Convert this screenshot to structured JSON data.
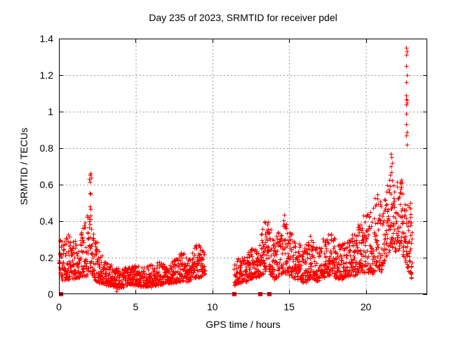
{
  "chart_data": {
    "type": "scatter",
    "title": "Day 235 of 2023, SRMTID for receiver pdel",
    "xlabel": "GPS time / hours",
    "ylabel": "SRMTID / TECUs",
    "xlim": [
      0,
      24
    ],
    "ylim": [
      0,
      1.4
    ],
    "xticks": [
      {
        "v": 0,
        "label": "0"
      },
      {
        "v": 5,
        "label": "5"
      },
      {
        "v": 10,
        "label": "10"
      },
      {
        "v": 15,
        "label": "15"
      },
      {
        "v": 20,
        "label": "20"
      }
    ],
    "yticks": [
      {
        "v": 0,
        "label": "0"
      },
      {
        "v": 0.2,
        "label": "0.2"
      },
      {
        "v": 0.4,
        "label": "0.4"
      },
      {
        "v": 0.6,
        "label": "0.6"
      },
      {
        "v": 0.8,
        "label": "0.8"
      },
      {
        "v": 1,
        "label": "1"
      },
      {
        "v": 1.2,
        "label": "1.2"
      },
      {
        "v": 1.4,
        "label": "1.4"
      }
    ],
    "grid": true,
    "legend": "none",
    "marker": "plus",
    "marker_size": 7,
    "marker_color": "#ff0000",
    "grid_color": "#999999",
    "axis_color": "#000000",
    "seed": 235,
    "points_per_hour": 112,
    "bands": [
      [
        [
          0.0,
          0.1,
          0.32
        ],
        [
          0.3,
          0.07,
          0.28
        ],
        [
          0.6,
          0.08,
          0.35
        ],
        [
          0.9,
          0.08,
          0.3
        ],
        [
          1.2,
          0.09,
          0.3
        ],
        [
          1.5,
          0.1,
          0.36
        ],
        [
          1.8,
          0.1,
          0.44
        ],
        [
          2.05,
          0.12,
          0.42
        ],
        [
          2.3,
          0.08,
          0.36
        ],
        [
          2.6,
          0.06,
          0.26
        ],
        [
          3.0,
          0.05,
          0.18
        ],
        [
          3.5,
          0.04,
          0.16
        ],
        [
          4.0,
          0.03,
          0.14
        ],
        [
          4.5,
          0.05,
          0.15
        ],
        [
          5.0,
          0.05,
          0.16
        ],
        [
          5.5,
          0.04,
          0.15
        ],
        [
          6.0,
          0.04,
          0.16
        ],
        [
          6.5,
          0.05,
          0.18
        ],
        [
          7.0,
          0.06,
          0.16
        ],
        [
          7.5,
          0.06,
          0.19
        ],
        [
          8.0,
          0.07,
          0.24
        ],
        [
          8.4,
          0.07,
          0.2
        ],
        [
          8.8,
          0.09,
          0.26
        ],
        [
          9.1,
          0.09,
          0.28
        ],
        [
          9.5,
          0.1,
          0.22
        ]
      ],
      [
        [
          11.4,
          0.05,
          0.18
        ],
        [
          11.7,
          0.06,
          0.2
        ],
        [
          12.0,
          0.06,
          0.2
        ],
        [
          12.4,
          0.08,
          0.24
        ],
        [
          12.8,
          0.09,
          0.28
        ],
        [
          13.1,
          0.1,
          0.33
        ],
        [
          13.4,
          0.12,
          0.42
        ],
        [
          13.7,
          0.12,
          0.42
        ],
        [
          14.0,
          0.08,
          0.3
        ],
        [
          14.3,
          0.1,
          0.36
        ],
        [
          14.6,
          0.12,
          0.45
        ],
        [
          14.9,
          0.1,
          0.4
        ],
        [
          15.2,
          0.09,
          0.33
        ],
        [
          15.6,
          0.08,
          0.28
        ],
        [
          16.0,
          0.06,
          0.26
        ],
        [
          16.4,
          0.09,
          0.33
        ],
        [
          16.8,
          0.07,
          0.26
        ],
        [
          17.2,
          0.09,
          0.31
        ],
        [
          17.6,
          0.1,
          0.35
        ],
        [
          18.0,
          0.09,
          0.3
        ],
        [
          18.4,
          0.08,
          0.28
        ],
        [
          18.8,
          0.1,
          0.31
        ],
        [
          19.2,
          0.1,
          0.33
        ],
        [
          19.6,
          0.12,
          0.4
        ],
        [
          20.0,
          0.12,
          0.46
        ],
        [
          20.4,
          0.1,
          0.45
        ],
        [
          20.7,
          0.15,
          0.58
        ],
        [
          21.0,
          0.12,
          0.5
        ],
        [
          21.3,
          0.2,
          0.55
        ],
        [
          21.6,
          0.25,
          0.68
        ],
        [
          21.9,
          0.22,
          0.6
        ],
        [
          22.2,
          0.25,
          0.65
        ],
        [
          22.5,
          0.2,
          0.6
        ],
        [
          22.75,
          0.12,
          0.5
        ],
        [
          23.0,
          0.08,
          0.4
        ]
      ]
    ],
    "extra_points": [
      [
        1.98,
        0.63
      ],
      [
        2.02,
        0.655
      ],
      [
        2.05,
        0.66
      ],
      [
        2.08,
        0.64
      ],
      [
        2.03,
        0.615
      ],
      [
        2.0,
        0.555
      ],
      [
        2.06,
        0.55
      ],
      [
        2.02,
        0.48
      ],
      [
        2.07,
        0.465
      ],
      [
        2.04,
        0.43
      ],
      [
        3.75,
        0.015
      ],
      [
        21.62,
        0.77
      ],
      [
        21.66,
        0.75
      ],
      [
        21.7,
        0.72
      ],
      [
        21.64,
        0.7
      ],
      [
        21.68,
        0.67
      ],
      [
        22.62,
        1.35
      ],
      [
        22.66,
        1.33
      ],
      [
        22.64,
        1.31
      ],
      [
        22.65,
        1.25
      ],
      [
        22.67,
        1.2
      ],
      [
        22.63,
        1.16
      ],
      [
        22.65,
        1.09
      ],
      [
        22.62,
        1.07
      ],
      [
        22.66,
        1.06
      ],
      [
        22.68,
        1.05
      ],
      [
        22.64,
        1.04
      ],
      [
        22.65,
        0.99
      ],
      [
        22.63,
        0.93
      ],
      [
        22.66,
        0.89
      ],
      [
        22.62,
        0.87
      ],
      [
        22.67,
        0.82
      ],
      [
        22.88,
        0.5
      ],
      [
        22.9,
        0.47
      ],
      [
        22.92,
        0.44
      ],
      [
        22.9,
        0.25
      ],
      [
        22.93,
        0.15
      ],
      [
        22.95,
        0.11
      ]
    ],
    "zero_flag_points": [
      [
        0.15,
        0
      ],
      [
        11.45,
        0
      ],
      [
        13.1,
        0
      ],
      [
        13.7,
        0
      ]
    ]
  }
}
